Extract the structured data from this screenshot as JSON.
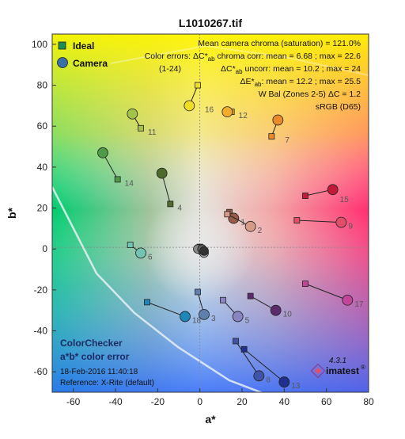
{
  "chart_data": {
    "type": "scatter",
    "title": "L1010267.tif",
    "xlabel": "a*",
    "ylabel": "b*",
    "xlim": [
      -70,
      80
    ],
    "ylim": [
      -70,
      105
    ],
    "x_ticks": [
      -60,
      -40,
      -20,
      0,
      20,
      40,
      60,
      80
    ],
    "y_ticks": [
      -60,
      -40,
      -20,
      0,
      20,
      40,
      60,
      80,
      100
    ],
    "grid": false,
    "legend": {
      "position": "top-left",
      "entries": [
        {
          "label": "Ideal",
          "marker": "square"
        },
        {
          "label": "Camera",
          "marker": "circle"
        }
      ]
    },
    "info_lines": [
      {
        "text": "Mean camera chroma (saturation) = 121.0%"
      },
      {
        "pre": "Color errors:  ",
        "sym": "ΔC*",
        "sub": "ab",
        "post": " chroma corr:  mean = 6.68 ;  max = 22.6"
      },
      {
        "lead": "(1-24)",
        "sym": "ΔC*",
        "sub": "ab",
        "post": " uncorr:  mean = 10.2 ;  max = 24"
      },
      {
        "sym": "ΔE*",
        "sub": "ab",
        "post": ":  mean = 12.2 ;  max = 25.5"
      },
      {
        "text": "W Bal (Zones 2-5) ΔC = 1.2"
      },
      {
        "text": "sRGB (D65)"
      }
    ],
    "patches": [
      {
        "id": "1",
        "ideal": [
          14,
          18
        ],
        "camera": [
          16,
          15
        ],
        "color": "#9a5a48"
      },
      {
        "id": "2",
        "ideal": [
          13,
          17
        ],
        "camera": [
          24,
          11
        ],
        "color": "#d59a88"
      },
      {
        "id": "3",
        "ideal": [
          -1,
          -21
        ],
        "camera": [
          2,
          -32
        ],
        "color": "#5f7fae"
      },
      {
        "id": "4",
        "ideal": [
          -14,
          22
        ],
        "camera": [
          -18,
          37
        ],
        "color": "#4e6a2c"
      },
      {
        "id": "5",
        "ideal": [
          11,
          -25
        ],
        "camera": [
          18,
          -33
        ],
        "color": "#8a84c2"
      },
      {
        "id": "6",
        "ideal": [
          -33,
          2
        ],
        "camera": [
          -28,
          -2
        ],
        "color": "#74c2b2"
      },
      {
        "id": "7",
        "ideal": [
          34,
          55
        ],
        "camera": [
          37,
          63
        ],
        "color": "#e98b2c"
      },
      {
        "id": "8",
        "ideal": [
          17,
          -45
        ],
        "camera": [
          28,
          -62
        ],
        "color": "#3f53a8"
      },
      {
        "id": "9",
        "ideal": [
          46,
          14
        ],
        "camera": [
          67,
          13
        ],
        "color": "#e24e6a"
      },
      {
        "id": "10",
        "ideal": [
          24,
          -23
        ],
        "camera": [
          36,
          -30
        ],
        "color": "#5e2a6e"
      },
      {
        "id": "11",
        "ideal": [
          -28,
          59
        ],
        "camera": [
          -32,
          66
        ],
        "color": "#a3c24a"
      },
      {
        "id": "12",
        "ideal": [
          15,
          67
        ],
        "camera": [
          13,
          67
        ],
        "color": "#f2ab2b"
      },
      {
        "id": "13",
        "ideal": [
          21,
          -49
        ],
        "camera": [
          40,
          -65
        ],
        "color": "#1f2f8c"
      },
      {
        "id": "14",
        "ideal": [
          -39,
          34
        ],
        "camera": [
          -46,
          47
        ],
        "color": "#4f9a46"
      },
      {
        "id": "15",
        "ideal": [
          50,
          26
        ],
        "camera": [
          63,
          29
        ],
        "color": "#c21b3a"
      },
      {
        "id": "16",
        "ideal": [
          -1,
          80
        ],
        "camera": [
          -5,
          70
        ],
        "color": "#eedd22"
      },
      {
        "id": "17",
        "ideal": [
          50,
          -17
        ],
        "camera": [
          70,
          -25
        ],
        "color": "#c4449a"
      },
      {
        "id": "18",
        "ideal": [
          -25,
          -26
        ],
        "camera": [
          -7,
          -33
        ],
        "color": "#1e86b8"
      }
    ],
    "neutral_camera_points": [
      [
        0,
        0
      ],
      [
        1,
        -1
      ],
      [
        2,
        -2
      ],
      [
        -1,
        0
      ],
      [
        1,
        0
      ],
      [
        2,
        -1
      ]
    ],
    "bottom_left_text": [
      "ColorChecker",
      "a*b* color error",
      "18-Feb-2016 11:40:18",
      "Reference:  X-Rite (default)"
    ],
    "version": "4.3.1",
    "brand": "imatest",
    "brand_mark": "®"
  }
}
